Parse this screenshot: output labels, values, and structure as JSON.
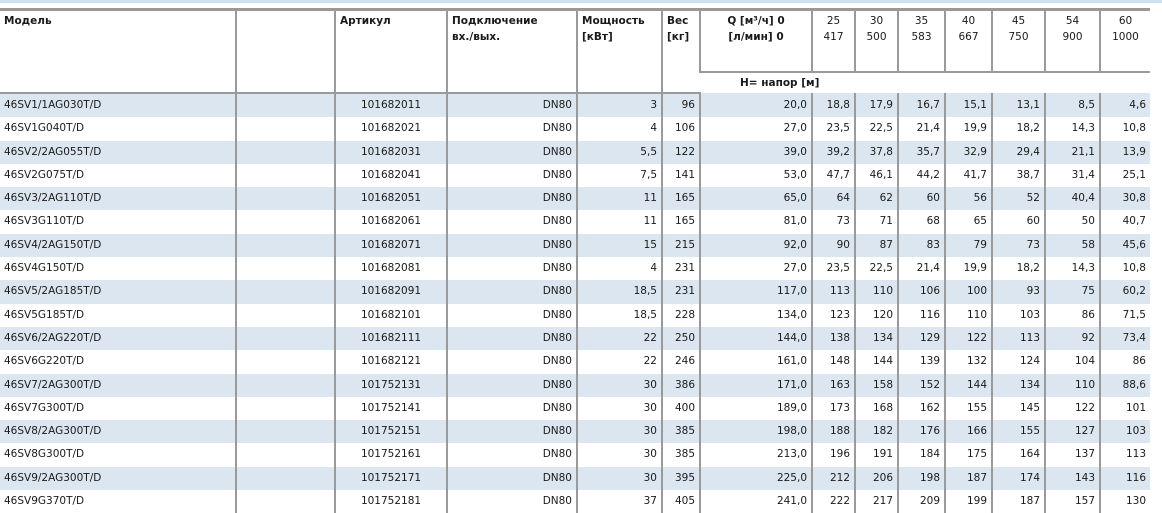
{
  "header": {
    "model": "Модель",
    "article": "Артикул",
    "connection": [
      "Подключение",
      "вх./вых."
    ],
    "power": [
      "Мощность",
      "[кВт]"
    ],
    "weight": [
      "Вес",
      "[кг]"
    ],
    "q_m3h_label": "Q [м³/ч] 0",
    "q_lmin_label": "[л/мин] 0",
    "q_m3h": [
      "25",
      "30",
      "35",
      "40",
      "45",
      "54",
      "60"
    ],
    "q_lmin": [
      "417",
      "500",
      "583",
      "667",
      "750",
      "900",
      "1000"
    ],
    "head_label": "H= напор [м]"
  },
  "rows": [
    [
      "46SV1/1AG030T/D",
      "101682011",
      "DN80",
      "3",
      "96",
      "20,0",
      "18,8",
      "17,9",
      "16,7",
      "15,1",
      "13,1",
      "8,5",
      "4,6"
    ],
    [
      "46SV1G040T/D",
      "101682021",
      "DN80",
      "4",
      "106",
      "27,0",
      "23,5",
      "22,5",
      "21,4",
      "19,9",
      "18,2",
      "14,3",
      "10,8"
    ],
    [
      "46SV2/2AG055T/D",
      "101682031",
      "DN80",
      "5,5",
      "122",
      "39,0",
      "39,2",
      "37,8",
      "35,7",
      "32,9",
      "29,4",
      "21,1",
      "13,9"
    ],
    [
      "46SV2G075T/D",
      "101682041",
      "DN80",
      "7,5",
      "141",
      "53,0",
      "47,7",
      "46,1",
      "44,2",
      "41,7",
      "38,7",
      "31,4",
      "25,1"
    ],
    [
      "46SV3/2AG110T/D",
      "101682051",
      "DN80",
      "11",
      "165",
      "65,0",
      "64",
      "62",
      "60",
      "56",
      "52",
      "40,4",
      "30,8"
    ],
    [
      "46SV3G110T/D",
      "101682061",
      "DN80",
      "11",
      "165",
      "81,0",
      "73",
      "71",
      "68",
      "65",
      "60",
      "50",
      "40,7"
    ],
    [
      "46SV4/2AG150T/D",
      "101682071",
      "DN80",
      "15",
      "215",
      "92,0",
      "90",
      "87",
      "83",
      "79",
      "73",
      "58",
      "45,6"
    ],
    [
      "46SV4G150T/D",
      "101682081",
      "DN80",
      "4",
      "231",
      "27,0",
      "23,5",
      "22,5",
      "21,4",
      "19,9",
      "18,2",
      "14,3",
      "10,8"
    ],
    [
      "46SV5/2AG185T/D",
      "101682091",
      "DN80",
      "18,5",
      "231",
      "117,0",
      "113",
      "110",
      "106",
      "100",
      "93",
      "75",
      "60,2"
    ],
    [
      "46SV5G185T/D",
      "101682101",
      "DN80",
      "18,5",
      "228",
      "134,0",
      "123",
      "120",
      "116",
      "110",
      "103",
      "86",
      "71,5"
    ],
    [
      "46SV6/2AG220T/D",
      "101682111",
      "DN80",
      "22",
      "250",
      "144,0",
      "138",
      "134",
      "129",
      "122",
      "113",
      "92",
      "73,4"
    ],
    [
      "46SV6G220T/D",
      "101682121",
      "DN80",
      "22",
      "246",
      "161,0",
      "148",
      "144",
      "139",
      "132",
      "124",
      "104",
      "86"
    ],
    [
      "46SV7/2AG300T/D",
      "101752131",
      "DN80",
      "30",
      "386",
      "171,0",
      "163",
      "158",
      "152",
      "144",
      "134",
      "110",
      "88,6"
    ],
    [
      "46SV7G300T/D",
      "101752141",
      "DN80",
      "30",
      "400",
      "189,0",
      "173",
      "168",
      "162",
      "155",
      "145",
      "122",
      "101"
    ],
    [
      "46SV8/2AG300T/D",
      "101752151",
      "DN80",
      "30",
      "385",
      "198,0",
      "188",
      "182",
      "176",
      "166",
      "155",
      "127",
      "103"
    ],
    [
      "46SV8G300T/D",
      "101752161",
      "DN80",
      "30",
      "385",
      "213,0",
      "196",
      "191",
      "184",
      "175",
      "164",
      "137",
      "113"
    ],
    [
      "46SV9/2AG300T/D",
      "101752171",
      "DN80",
      "30",
      "395",
      "225,0",
      "212",
      "206",
      "198",
      "187",
      "174",
      "143",
      "116"
    ],
    [
      "46SV9G370T/D",
      "101752181",
      "DN80",
      "37",
      "405",
      "241,0",
      "222",
      "217",
      "209",
      "199",
      "187",
      "157",
      "130"
    ]
  ],
  "colors": {
    "stripe": "#dce6f0",
    "grid": "#9a9a9a"
  }
}
